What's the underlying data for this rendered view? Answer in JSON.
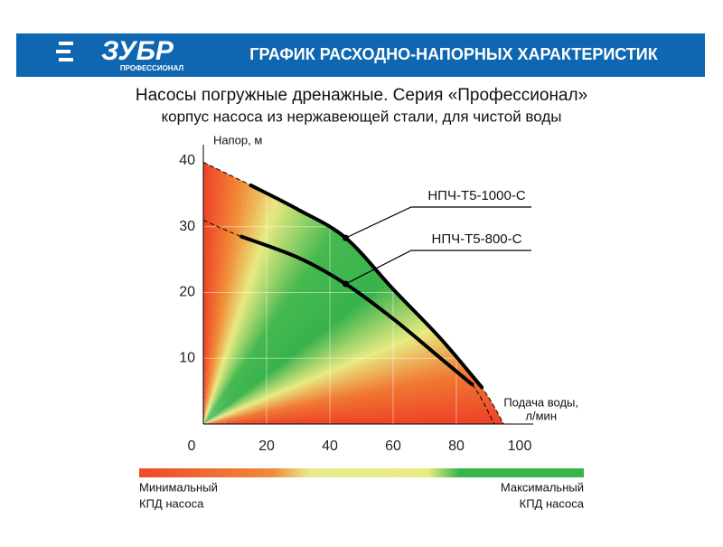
{
  "header": {
    "brand": "ЗУБР",
    "brand_sub": "ПРОФЕССИОНАЛ",
    "title": "ГРАФИК РАСХОДНО-НАПОРНЫХ ХАРАКТЕРИСТИК"
  },
  "chart_data": {
    "type": "line",
    "title": "Насосы погружные дренажные. Серия «Профессионал»",
    "subtitle": "корпус насоса из нержавеющей стали, для чистой воды",
    "y_label": "Напор, м",
    "x_label": [
      "Подача воды,",
      "л/мин"
    ],
    "xlim": [
      0,
      100
    ],
    "ylim": [
      0,
      40
    ],
    "xticks": [
      0,
      20,
      40,
      60,
      80,
      100
    ],
    "yticks": [
      10,
      20,
      30,
      40
    ],
    "grid": true,
    "series": [
      {
        "name": "НПЧ-Т5-1000-С",
        "color": "#000000",
        "x": [
          0,
          15,
          30,
          45,
          60,
          75,
          88,
          95
        ],
        "values": [
          39.8,
          36.3,
          32.6,
          28.3,
          20.5,
          13,
          5.6,
          0
        ]
      },
      {
        "name": "НПЧ-Т5-800-С",
        "color": "#000000",
        "x": [
          0,
          12,
          30,
          45,
          60,
          75,
          85,
          92
        ],
        "values": [
          31,
          28.5,
          25.3,
          21.3,
          16,
          10,
          6,
          0
        ]
      }
    ],
    "efficiency_scale": {
      "min_label": [
        "Минимальный",
        "КПД насоса"
      ],
      "max_label": [
        "Максимальный",
        "КПД насоса"
      ],
      "colors": [
        "#ee4a2a",
        "#f08a3a",
        "#e6ea8a",
        "#e8ec80",
        "#38b54a"
      ]
    }
  }
}
